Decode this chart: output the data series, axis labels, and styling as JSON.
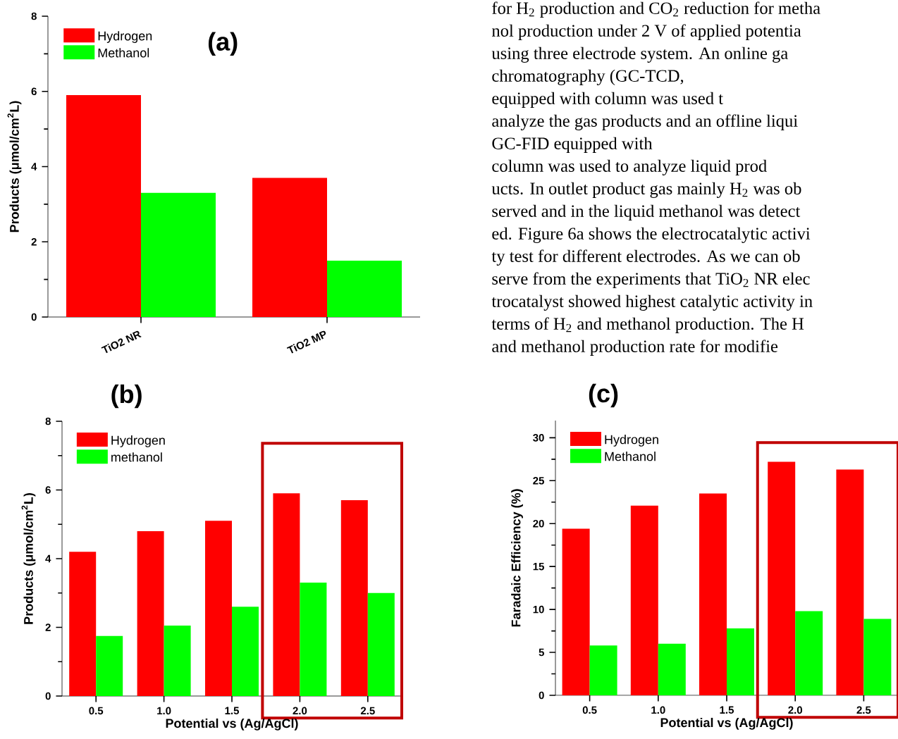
{
  "chart_data": [
    {
      "type": "bar",
      "title": "(a)",
      "ylabel": "Products (μmol/cm$^{2}$L)",
      "categories": [
        "TiO2 NR",
        "TiO2 MP"
      ],
      "ylim": [
        0,
        8
      ],
      "yticks": [
        0,
        2,
        4,
        6,
        8
      ],
      "legend": "top left",
      "series": [
        {
          "name": "Hydrogen",
          "color": "#ff0000",
          "values": [
            5.9,
            3.7
          ]
        },
        {
          "name": "Methanol",
          "color": "#00ff00",
          "values": [
            3.3,
            1.5
          ]
        }
      ]
    },
    {
      "type": "bar",
      "title": "(b)",
      "xlabel": "Potential vs (Ag/AgCl)",
      "ylabel": "Products (μmol/cm$^{2}$L)",
      "categories": [
        "0.5",
        "1.0",
        "1.5",
        "2.0",
        "2.5"
      ],
      "ylim": [
        0,
        8
      ],
      "yticks": [
        0,
        2,
        4,
        6,
        8
      ],
      "legend": "top left",
      "series": [
        {
          "name": "Hydrogen",
          "color": "#ff0000",
          "values": [
            4.2,
            4.8,
            5.1,
            5.9,
            5.7
          ]
        },
        {
          "name": "methanol",
          "color": "#00ff00",
          "values": [
            1.75,
            2.05,
            2.6,
            3.3,
            3.0
          ]
        }
      ]
    },
    {
      "type": "bar",
      "title": "(c)",
      "xlabel": "Potential vs (Ag/AgCl)",
      "ylabel": "Faradaic Efficiency (%)",
      "categories": [
        "0.5",
        "1.0",
        "1.5",
        "2.0",
        "2.5"
      ],
      "ylim": [
        0,
        32
      ],
      "yticks": [
        0,
        5,
        10,
        15,
        20,
        25,
        30
      ],
      "legend": "top left",
      "series": [
        {
          "name": "Hydrogen",
          "color": "#ff0000",
          "values": [
            19.4,
            22.1,
            23.5,
            27.2,
            26.3
          ]
        },
        {
          "name": "Methanol",
          "color": "#00ff00",
          "values": [
            5.8,
            6.0,
            7.8,
            9.8,
            8.9
          ]
        }
      ]
    },
    {
      "type": "other",
      "annotations": [
        "for H$_{2}$ production and CO$_{2}$ reduction for metha",
        "nol production under 2 V of applied potentia",
        "using three electrode system. An online ga",
        "chromatography (GC-TCD,",
        "equipped with column was used t",
        "analyze the gas products and an offline liqui",
        "GC-FID equipped with",
        "column was used to analyze liquid prod",
        "ucts. In outlet product gas mainly H$_{2}$ was ob",
        "served and in the liquid methanol was detect",
        "ed. Figure 6a shows the electrocatalytic activi",
        "ty test for different electrodes. As we can ob",
        "serve from the experiments that TiO$_{2}$ NR elec",
        "trocatalyst showed highest catalytic activity in",
        "terms of H$_{2}$ and methanol production. The H",
        "and methanol production rate for modifie"
      ]
    }
  ]
}
